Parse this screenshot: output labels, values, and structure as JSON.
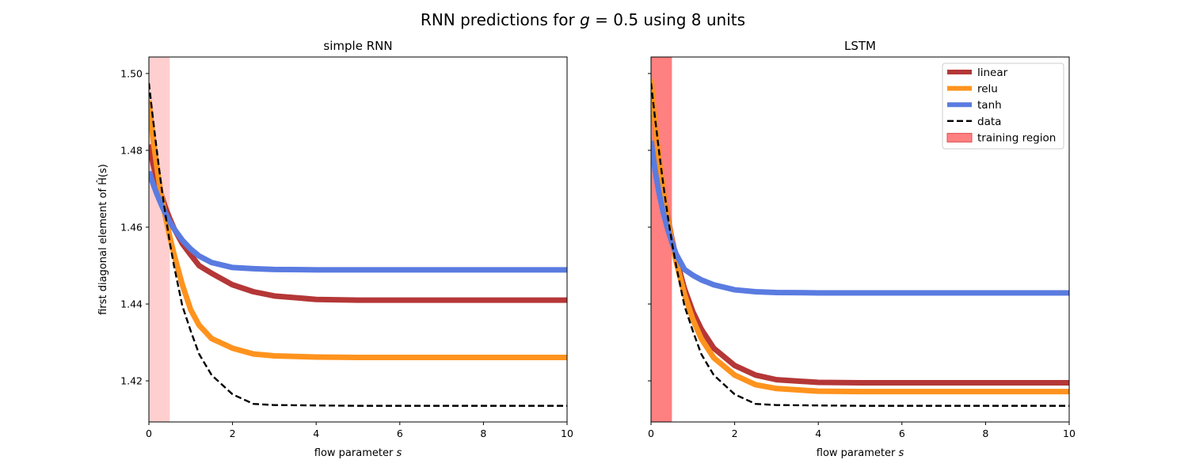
{
  "figure": {
    "title_prefix": "RNN predictions for ",
    "title_var": "g",
    "title_eq": " = 0.5 using 8 units"
  },
  "chart_data": [
    {
      "type": "line",
      "title": "simple RNN",
      "xlabel_text": "flow parameter ",
      "xlabel_var": "s",
      "ylabel": "first diagonal element of Ĥ(s)",
      "xlim": [
        0,
        10
      ],
      "ylim": [
        1.4093,
        1.5043
      ],
      "xticks": [
        0,
        2,
        4,
        6,
        8,
        10
      ],
      "xtick_labels": [
        "0",
        "2",
        "4",
        "6",
        "8",
        "10"
      ],
      "yticks": [
        1.42,
        1.44,
        1.46,
        1.48,
        1.5
      ],
      "ytick_labels": [
        "1.42",
        "1.44",
        "1.46",
        "1.48",
        "1.50"
      ],
      "show_ytick_labels": true,
      "grid": false,
      "legend": false,
      "shaded_region": {
        "x": [
          0,
          0.5
        ],
        "color": "#ff8080",
        "alpha": 0.38
      },
      "series": [
        {
          "name": "linear",
          "color": "#b53737",
          "style": "solid",
          "width": 7,
          "x": [
            0,
            0.1,
            0.2,
            0.3,
            0.4,
            0.5,
            0.6,
            0.8,
            1.0,
            1.2,
            1.5,
            2,
            2.5,
            3,
            4,
            5,
            6,
            8,
            10
          ],
          "y": [
            1.4815,
            1.4764,
            1.4721,
            1.4683,
            1.465,
            1.4622,
            1.4597,
            1.4557,
            1.4528,
            1.45,
            1.448,
            1.445,
            1.4432,
            1.4421,
            1.4412,
            1.441,
            1.441,
            1.441,
            1.441
          ]
        },
        {
          "name": "relu",
          "color": "#ff931e",
          "style": "solid",
          "width": 7,
          "x": [
            0,
            0.1,
            0.2,
            0.3,
            0.4,
            0.5,
            0.6,
            0.8,
            1.0,
            1.2,
            1.5,
            2,
            2.5,
            3,
            4,
            5,
            6,
            8,
            10
          ],
          "y": [
            1.493,
            1.483,
            1.475,
            1.468,
            1.4625,
            1.4575,
            1.453,
            1.445,
            1.4385,
            1.4345,
            1.431,
            1.4285,
            1.427,
            1.4265,
            1.4262,
            1.4261,
            1.4261,
            1.4261,
            1.4261
          ]
        },
        {
          "name": "tanh",
          "color": "#5a7be0",
          "style": "solid",
          "width": 7,
          "x": [
            0,
            0.1,
            0.2,
            0.3,
            0.4,
            0.5,
            0.6,
            0.8,
            1.0,
            1.2,
            1.5,
            2,
            2.5,
            3,
            4,
            5,
            6,
            8,
            10
          ],
          "y": [
            1.4745,
            1.4713,
            1.4684,
            1.4658,
            1.4635,
            1.4614,
            1.4596,
            1.4566,
            1.4543,
            1.4525,
            1.4508,
            1.4495,
            1.4492,
            1.449,
            1.4489,
            1.4489,
            1.4489,
            1.4489,
            1.4489
          ]
        },
        {
          "name": "data",
          "color": "#000000",
          "style": "dashed",
          "width": 2.4,
          "x": [
            0,
            0.1,
            0.2,
            0.3,
            0.4,
            0.5,
            0.6,
            0.8,
            1.0,
            1.2,
            1.5,
            2,
            2.5,
            3,
            4,
            5,
            6,
            8,
            10
          ],
          "y": [
            1.4975,
            1.488,
            1.479,
            1.4705,
            1.463,
            1.456,
            1.45,
            1.4395,
            1.433,
            1.427,
            1.4215,
            1.4165,
            1.414,
            1.4137,
            1.4136,
            1.4135,
            1.4135,
            1.4135,
            1.4135
          ]
        }
      ]
    },
    {
      "type": "line",
      "title": "LSTM",
      "xlabel_text": "flow parameter ",
      "xlabel_var": "s",
      "ylabel": "",
      "xlim": [
        0,
        10
      ],
      "ylim": [
        1.4093,
        1.5043
      ],
      "xticks": [
        0,
        2,
        4,
        6,
        8,
        10
      ],
      "xtick_labels": [
        "0",
        "2",
        "4",
        "6",
        "8",
        "10"
      ],
      "yticks": [
        1.42,
        1.44,
        1.46,
        1.48,
        1.5
      ],
      "ytick_labels": [
        "",
        "",
        "",
        "",
        ""
      ],
      "show_ytick_labels": false,
      "grid": false,
      "legend": true,
      "legend_position": "top-right",
      "shaded_region": {
        "x": [
          0,
          0.5
        ],
        "color": "#ff8080",
        "alpha": 1.0
      },
      "series": [
        {
          "name": "linear",
          "color": "#b53737",
          "style": "solid",
          "width": 7,
          "x": [
            0,
            0.1,
            0.2,
            0.3,
            0.4,
            0.5,
            0.6,
            0.8,
            1.0,
            1.2,
            1.5,
            2,
            2.5,
            3,
            4,
            5,
            6,
            8,
            10
          ],
          "y": [
            1.498,
            1.4865,
            1.477,
            1.469,
            1.4625,
            1.457,
            1.452,
            1.444,
            1.438,
            1.4335,
            1.4285,
            1.424,
            1.4215,
            1.4203,
            1.4196,
            1.4195,
            1.4195,
            1.4195,
            1.4195
          ]
        },
        {
          "name": "relu",
          "color": "#ff931e",
          "style": "solid",
          "width": 7,
          "x": [
            0,
            0.1,
            0.2,
            0.3,
            0.4,
            0.5,
            0.6,
            0.8,
            1.0,
            1.2,
            1.5,
            2,
            2.5,
            3,
            4,
            5,
            6,
            8,
            10
          ],
          "y": [
            1.4985,
            1.4868,
            1.477,
            1.469,
            1.462,
            1.4565,
            1.451,
            1.4425,
            1.436,
            1.431,
            1.426,
            1.4215,
            1.419,
            1.418,
            1.4173,
            1.4172,
            1.4172,
            1.4172,
            1.4172
          ]
        },
        {
          "name": "tanh",
          "color": "#5a7be0",
          "style": "solid",
          "width": 7,
          "x": [
            0,
            0.1,
            0.2,
            0.3,
            0.4,
            0.5,
            0.6,
            0.8,
            1.0,
            1.2,
            1.5,
            2,
            2.5,
            3,
            4,
            5,
            6,
            8,
            10
          ],
          "y": [
            1.4825,
            1.4745,
            1.4685,
            1.4635,
            1.4595,
            1.456,
            1.453,
            1.449,
            1.4475,
            1.4463,
            1.445,
            1.4437,
            1.4432,
            1.443,
            1.4429,
            1.4429,
            1.4429,
            1.4429,
            1.4429
          ]
        },
        {
          "name": "data",
          "color": "#000000",
          "style": "dashed",
          "width": 2.4,
          "x": [
            0,
            0.1,
            0.2,
            0.3,
            0.4,
            0.5,
            0.6,
            0.8,
            1.0,
            1.2,
            1.5,
            2,
            2.5,
            3,
            4,
            5,
            6,
            8,
            10
          ],
          "y": [
            1.4975,
            1.488,
            1.479,
            1.4705,
            1.463,
            1.456,
            1.45,
            1.4395,
            1.433,
            1.427,
            1.4215,
            1.4165,
            1.414,
            1.4137,
            1.4136,
            1.4135,
            1.4135,
            1.4135,
            1.4135
          ]
        }
      ]
    }
  ],
  "legend": {
    "entries": [
      {
        "label": "linear",
        "color": "#b53737",
        "kind": "line"
      },
      {
        "label": "relu",
        "color": "#ff931e",
        "kind": "line"
      },
      {
        "label": "tanh",
        "color": "#5a7be0",
        "kind": "line"
      },
      {
        "label": "data",
        "color": "#000000",
        "kind": "dashed"
      },
      {
        "label": "training region",
        "color": "#ff8080",
        "kind": "patch"
      }
    ]
  }
}
